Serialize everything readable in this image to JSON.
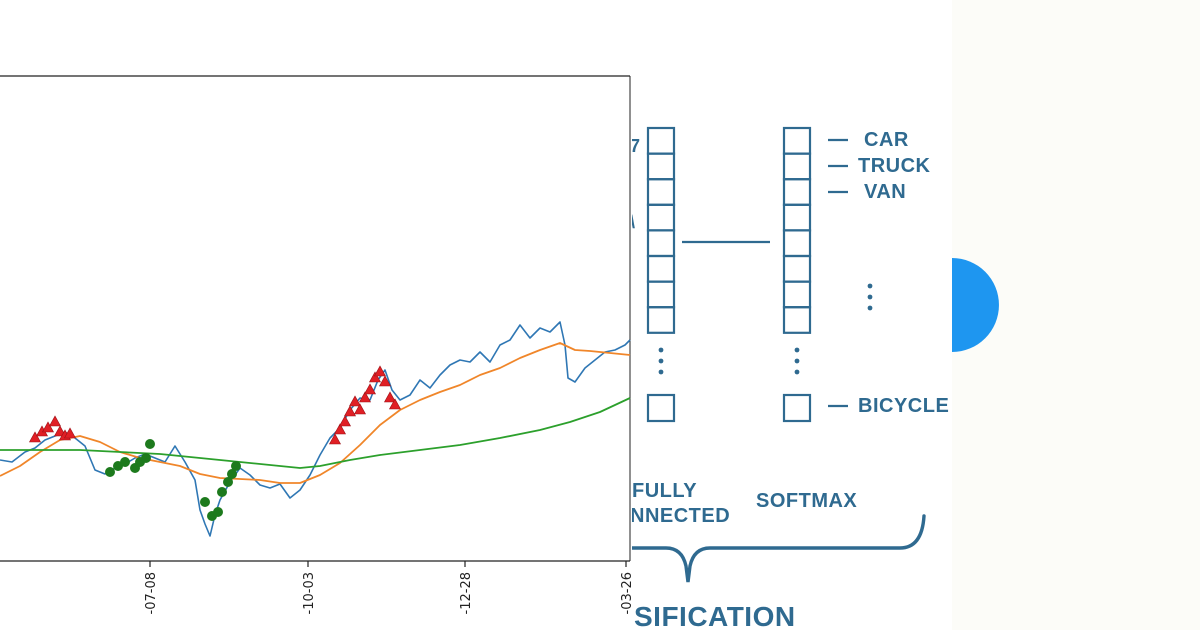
{
  "chart_data": {
    "type": "line",
    "x_tick_labels": [
      "-07-08",
      "-10-03",
      "-12-28",
      "-03-26"
    ],
    "grid": false,
    "colors": {
      "price": "#2f77b4",
      "ma_short": "#f0862a",
      "ma_long": "#2ca02c",
      "sell_marker": "#e01f25",
      "buy_marker": "#1d7a1d"
    },
    "series": [
      {
        "key": "price",
        "values": [
          [
            0,
            460
          ],
          [
            12,
            462
          ],
          [
            25,
            452
          ],
          [
            35,
            448
          ],
          [
            45,
            440
          ],
          [
            55,
            436
          ],
          [
            65,
            432
          ],
          [
            75,
            438
          ],
          [
            85,
            446
          ],
          [
            95,
            470
          ],
          [
            105,
            474
          ],
          [
            115,
            468
          ],
          [
            125,
            464
          ],
          [
            135,
            458
          ],
          [
            145,
            454
          ],
          [
            155,
            458
          ],
          [
            165,
            462
          ],
          [
            175,
            446
          ],
          [
            185,
            462
          ],
          [
            195,
            480
          ],
          [
            200,
            510
          ],
          [
            205,
            524
          ],
          [
            210,
            536
          ],
          [
            215,
            515
          ],
          [
            220,
            500
          ],
          [
            230,
            482
          ],
          [
            240,
            468
          ],
          [
            250,
            475
          ],
          [
            260,
            485
          ],
          [
            270,
            488
          ],
          [
            280,
            484
          ],
          [
            290,
            498
          ],
          [
            300,
            490
          ],
          [
            310,
            475
          ],
          [
            320,
            455
          ],
          [
            330,
            438
          ],
          [
            340,
            428
          ],
          [
            350,
            410
          ],
          [
            360,
            398
          ],
          [
            370,
            400
          ],
          [
            378,
            380
          ],
          [
            385,
            370
          ],
          [
            392,
            390
          ],
          [
            400,
            400
          ],
          [
            410,
            395
          ],
          [
            420,
            380
          ],
          [
            430,
            388
          ],
          [
            440,
            375
          ],
          [
            450,
            365
          ],
          [
            460,
            360
          ],
          [
            470,
            362
          ],
          [
            480,
            352
          ],
          [
            490,
            362
          ],
          [
            500,
            345
          ],
          [
            510,
            340
          ],
          [
            520,
            325
          ],
          [
            530,
            338
          ],
          [
            540,
            328
          ],
          [
            550,
            332
          ],
          [
            560,
            322
          ],
          [
            565,
            345
          ],
          [
            568,
            378
          ],
          [
            575,
            382
          ],
          [
            585,
            368
          ],
          [
            595,
            360
          ],
          [
            605,
            352
          ],
          [
            615,
            350
          ],
          [
            625,
            345
          ],
          [
            630,
            340
          ]
        ]
      },
      {
        "key": "ma_short",
        "values": [
          [
            0,
            476
          ],
          [
            20,
            466
          ],
          [
            40,
            452
          ],
          [
            60,
            440
          ],
          [
            80,
            436
          ],
          [
            100,
            442
          ],
          [
            120,
            452
          ],
          [
            140,
            458
          ],
          [
            160,
            462
          ],
          [
            180,
            466
          ],
          [
            200,
            474
          ],
          [
            220,
            478
          ],
          [
            240,
            479
          ],
          [
            260,
            480
          ],
          [
            280,
            483
          ],
          [
            300,
            483
          ],
          [
            320,
            475
          ],
          [
            340,
            463
          ],
          [
            360,
            445
          ],
          [
            380,
            425
          ],
          [
            400,
            410
          ],
          [
            420,
            400
          ],
          [
            440,
            392
          ],
          [
            460,
            385
          ],
          [
            480,
            375
          ],
          [
            500,
            368
          ],
          [
            520,
            358
          ],
          [
            540,
            350
          ],
          [
            560,
            343
          ],
          [
            575,
            350
          ],
          [
            590,
            351
          ],
          [
            610,
            353
          ],
          [
            630,
            355
          ]
        ]
      },
      {
        "key": "ma_long",
        "values": [
          [
            0,
            450
          ],
          [
            40,
            450
          ],
          [
            80,
            450
          ],
          [
            120,
            452
          ],
          [
            160,
            454
          ],
          [
            200,
            458
          ],
          [
            240,
            462
          ],
          [
            280,
            466
          ],
          [
            300,
            468
          ],
          [
            320,
            466
          ],
          [
            350,
            460
          ],
          [
            380,
            455
          ],
          [
            420,
            450
          ],
          [
            460,
            445
          ],
          [
            500,
            438
          ],
          [
            540,
            430
          ],
          [
            570,
            422
          ],
          [
            600,
            412
          ],
          [
            630,
            398
          ]
        ]
      }
    ],
    "sell_markers": [
      [
        35,
        438
      ],
      [
        42,
        432
      ],
      [
        48,
        428
      ],
      [
        55,
        422
      ],
      [
        60,
        432
      ],
      [
        65,
        436
      ],
      [
        70,
        434
      ],
      [
        335,
        440
      ],
      [
        340,
        430
      ],
      [
        345,
        422
      ],
      [
        350,
        412
      ],
      [
        355,
        402
      ],
      [
        360,
        410
      ],
      [
        365,
        398
      ],
      [
        370,
        390
      ],
      [
        375,
        378
      ],
      [
        380,
        372
      ],
      [
        385,
        382
      ],
      [
        390,
        398
      ],
      [
        395,
        405
      ]
    ],
    "buy_markers": [
      [
        110,
        472
      ],
      [
        118,
        466
      ],
      [
        125,
        462
      ],
      [
        135,
        468
      ],
      [
        140,
        462
      ],
      [
        146,
        458
      ],
      [
        150,
        444
      ],
      [
        205,
        502
      ],
      [
        212,
        516
      ],
      [
        218,
        512
      ],
      [
        222,
        492
      ],
      [
        228,
        482
      ],
      [
        232,
        474
      ],
      [
        236,
        466
      ]
    ]
  },
  "diagram": {
    "output_labels": [
      "CAR",
      "TRUCK",
      "VAN",
      "BICYCLE"
    ],
    "stage_labels": [
      "FULLY",
      "NNECTED",
      "SOFTMAX"
    ],
    "section_title": "SIFICATION",
    "colors": {
      "primary": "#2f6a90"
    }
  },
  "decoration": {
    "colors": {
      "circle": "#1e96f0"
    }
  }
}
